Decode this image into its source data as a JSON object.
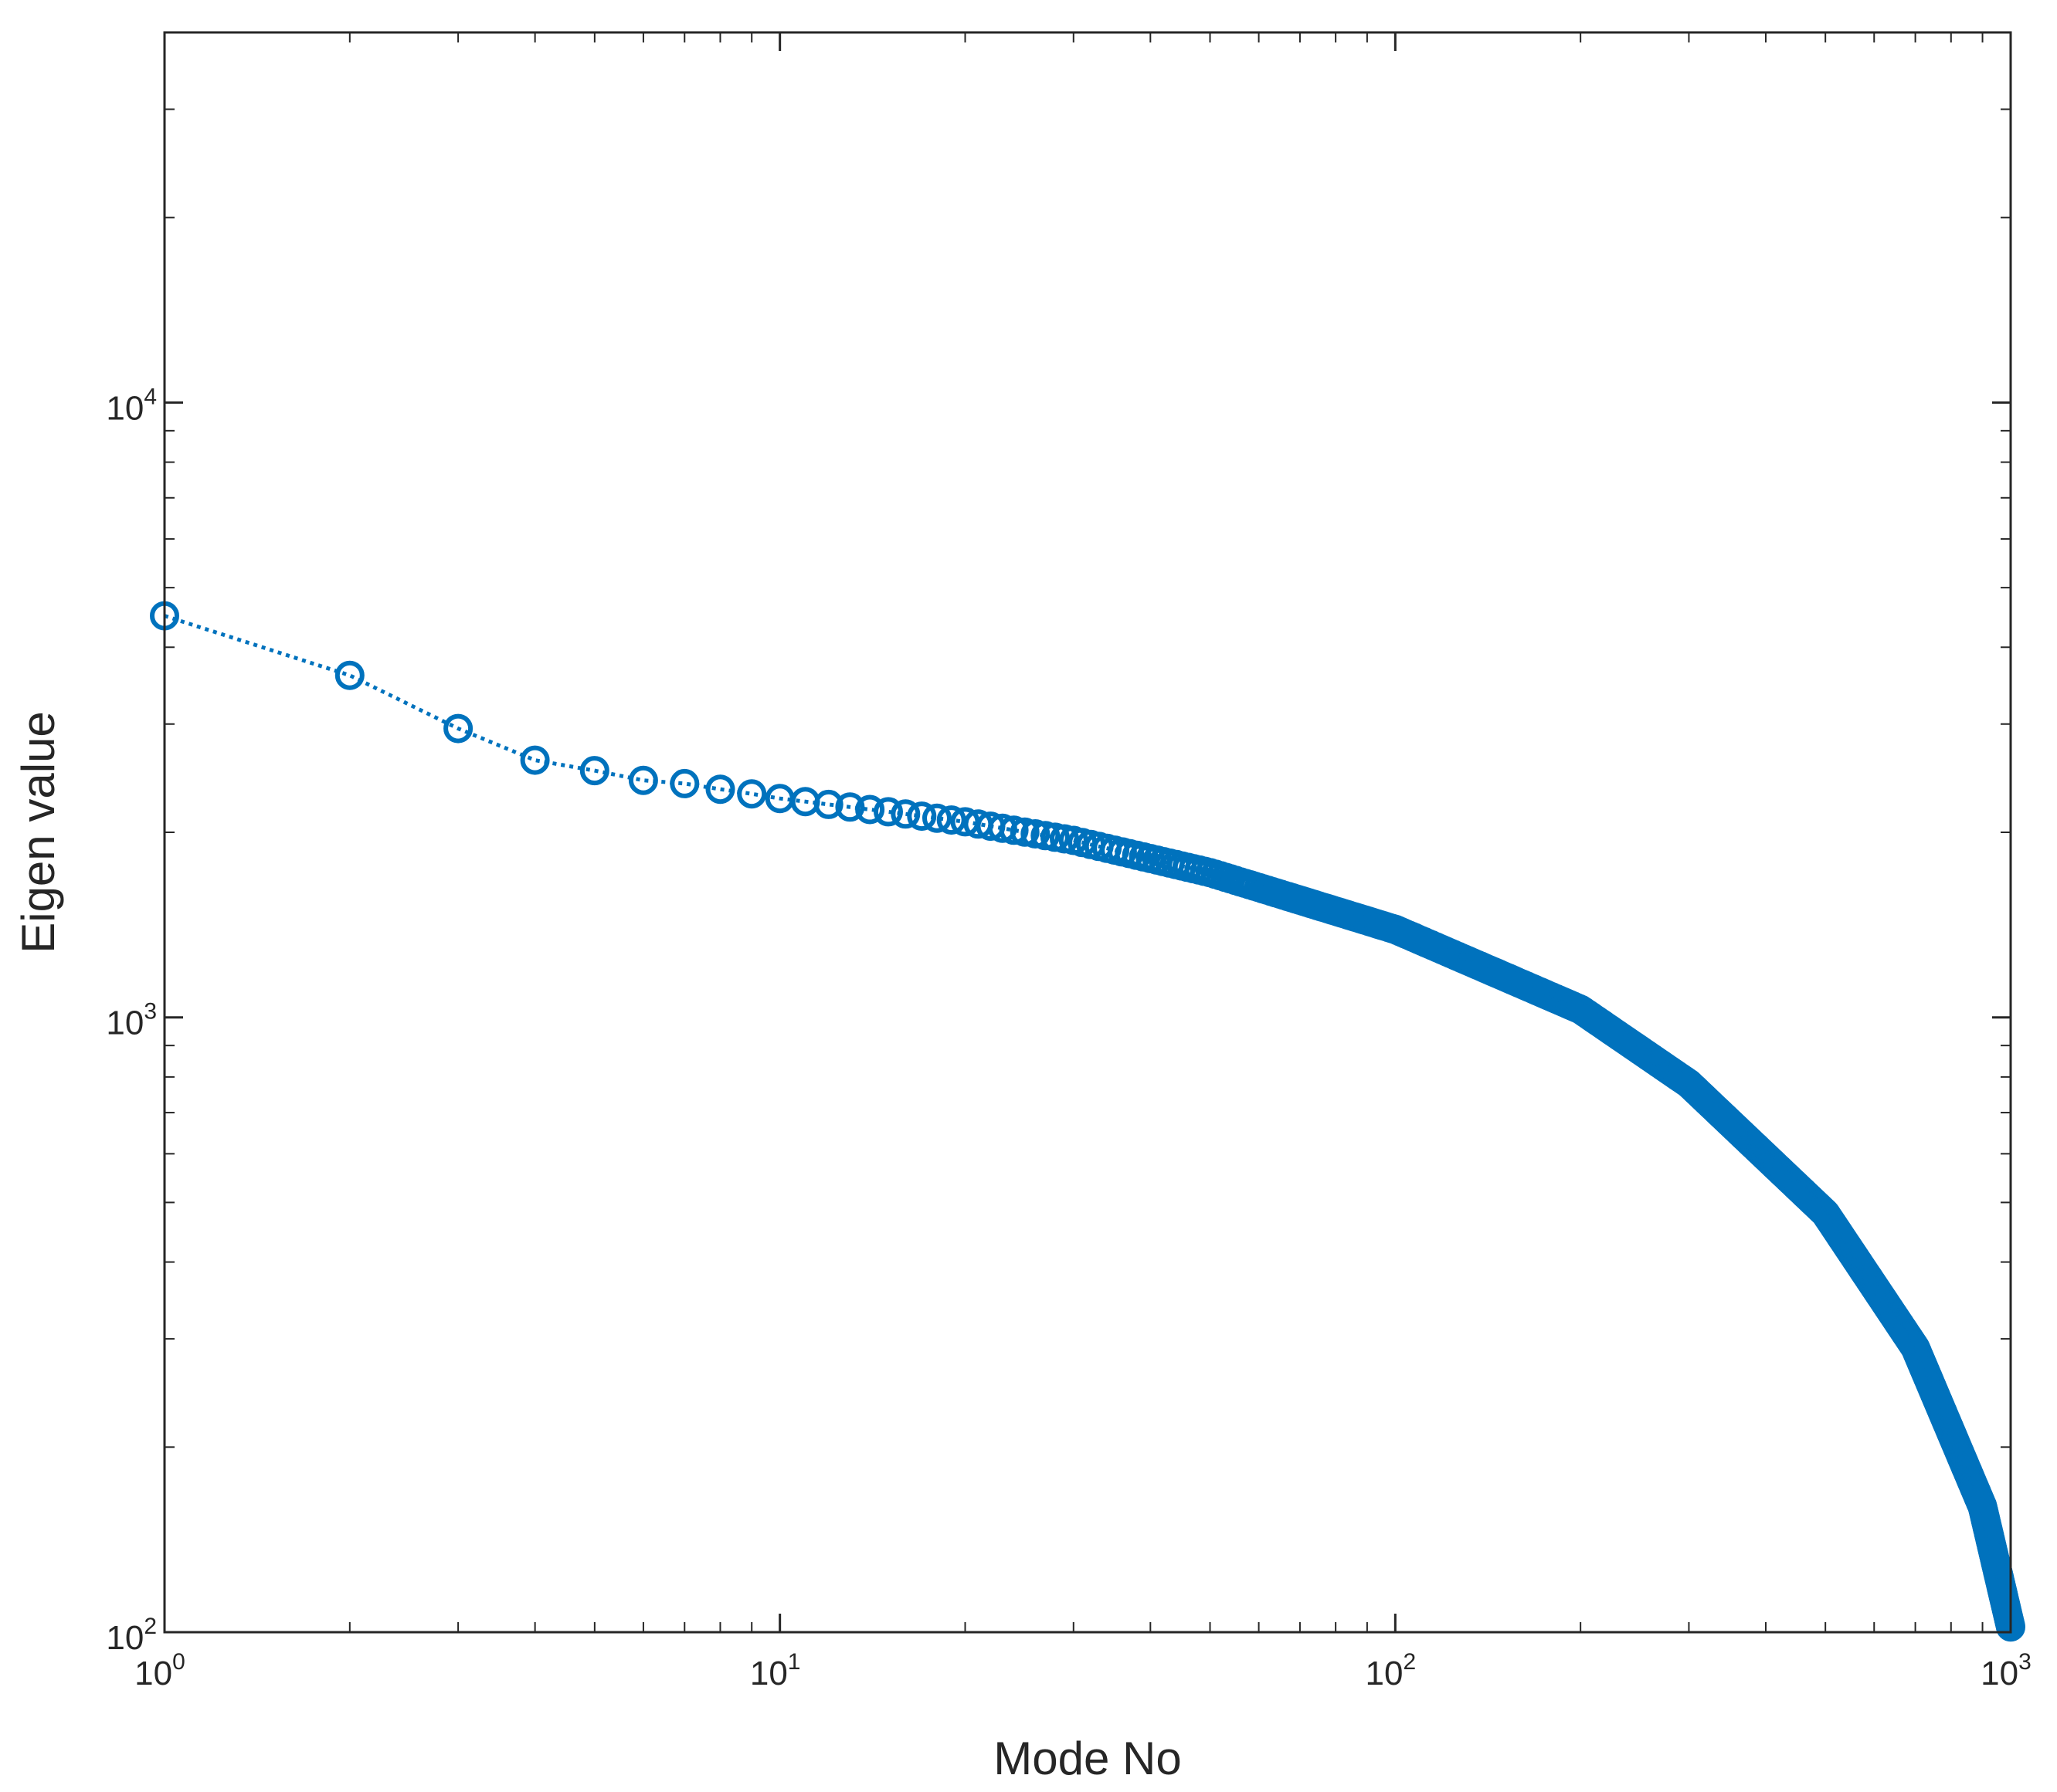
{
  "chart_data": {
    "type": "scatter",
    "title": "",
    "xlabel": "Mode No",
    "ylabel": "Eigen value",
    "xscale": "log",
    "yscale": "log",
    "xlim": [
      1,
      1000
    ],
    "ylim": [
      100,
      40000
    ],
    "grid": false,
    "legend": "none",
    "marker": "circle",
    "line_style": "dotted",
    "color": "#0072BD",
    "x_ticks": [
      {
        "base": "10",
        "exp": "0"
      },
      {
        "base": "10",
        "exp": "1"
      },
      {
        "base": "10",
        "exp": "2"
      },
      {
        "base": "10",
        "exp": "3"
      }
    ],
    "y_ticks": [
      {
        "base": "10",
        "exp": "2"
      },
      {
        "base": "10",
        "exp": "3"
      },
      {
        "base": "10",
        "exp": "4"
      }
    ],
    "anchor_points": {
      "x": [
        1,
        2,
        3,
        4,
        5,
        6,
        7,
        8,
        9,
        10,
        12,
        15,
        20,
        30,
        50,
        100,
        200,
        300,
        500,
        700,
        900,
        1000
      ],
      "y": [
        4500,
        3600,
        2950,
        2620,
        2520,
        2430,
        2400,
        2350,
        2310,
        2270,
        2220,
        2160,
        2080,
        1940,
        1720,
        1390,
        1030,
        780,
        480,
        290,
        160,
        102
      ]
    },
    "n_points": 1000
  }
}
